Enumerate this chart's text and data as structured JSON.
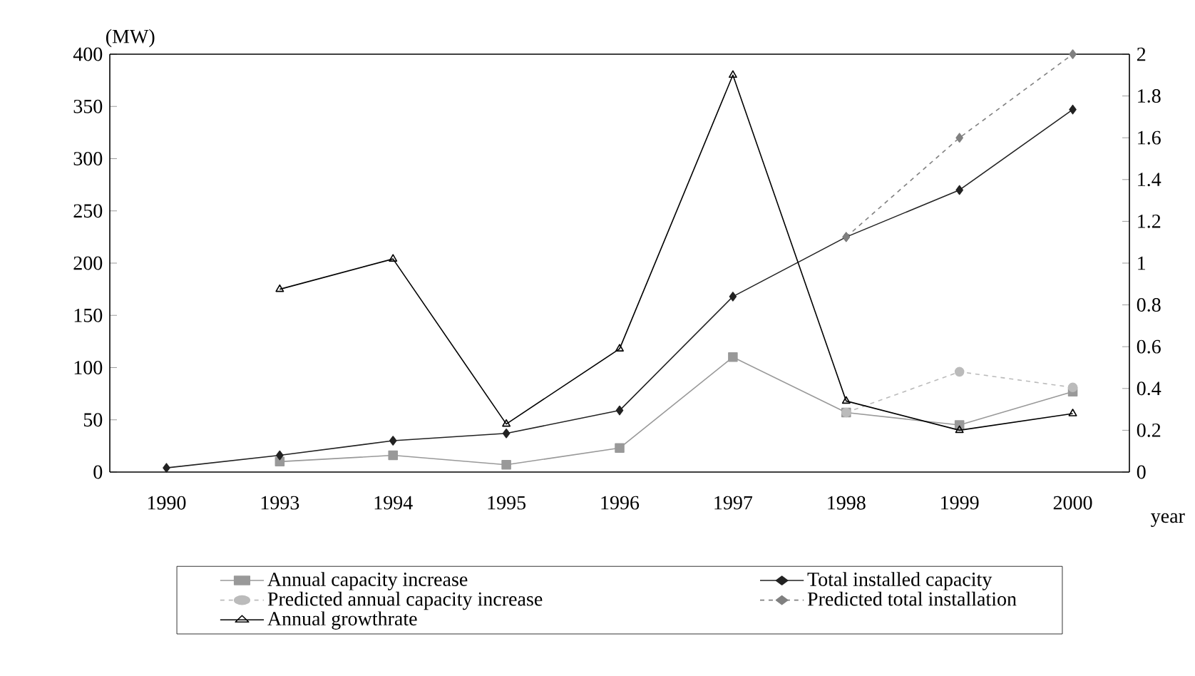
{
  "chart_data": {
    "type": "line",
    "ylabel": "(MW)",
    "xlabel": "year",
    "categories": [
      "1990",
      "1993",
      "1994",
      "1995",
      "1996",
      "1997",
      "1998",
      "1999",
      "2000"
    ],
    "series": [
      {
        "name": "Annual capacity increase",
        "color": "#999999",
        "marker": "square",
        "line_style": "solid",
        "values": [
          null,
          10,
          16,
          7,
          23,
          110,
          57,
          45,
          77
        ]
      },
      {
        "name": "Total installed capacity",
        "color": "#222222",
        "marker": "diamond",
        "line_style": "solid",
        "values": [
          4,
          16,
          30,
          37,
          59,
          168,
          225,
          270,
          347
        ]
      },
      {
        "name": "Predicted annual capacity increase",
        "color": "#bbbbbb",
        "marker": "circle",
        "line_style": "dashed",
        "values": [
          null,
          null,
          null,
          null,
          null,
          null,
          57,
          96,
          81
        ]
      },
      {
        "name": "Predicted total installation",
        "color": "#808080",
        "marker": "diamond",
        "line_style": "dashed",
        "values": [
          null,
          null,
          null,
          null,
          null,
          null,
          225,
          320,
          400
        ]
      },
      {
        "name": "Annual growthrate",
        "color": "#000000",
        "marker": "triangle",
        "line_style": "solid",
        "axis": "y2",
        "values": [
          null,
          0.875,
          1.02,
          0.23,
          0.59,
          1.9,
          0.34,
          0.2,
          0.28
        ]
      }
    ],
    "ylim": [
      0,
      400
    ],
    "yticks": [
      0,
      50,
      100,
      150,
      200,
      250,
      300,
      350,
      400
    ],
    "y2lim": [
      0,
      2
    ],
    "y2ticks": [
      0,
      0.2,
      0.4,
      0.6,
      0.8,
      1,
      1.2,
      1.4,
      1.6,
      1.8,
      2
    ],
    "grid": false,
    "legend": "bottom"
  }
}
